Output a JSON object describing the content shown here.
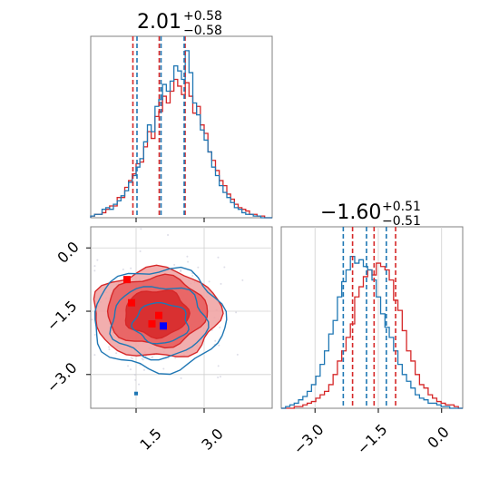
{
  "colors": {
    "red": "#d62728",
    "blue": "#1f77b4",
    "red_fill": "#f0a0a0",
    "blue_marker": "#0000ff",
    "red_marker": "#ff0000"
  },
  "chart_data": {
    "type": "corner",
    "param1": {
      "title_value": "2.01",
      "title_plus": "+0.58",
      "title_minus": "−0.58",
      "xlim": [
        0.5,
        4.5
      ],
      "ticks": [
        1.5,
        3.0
      ],
      "tick_labels": [
        "1.5",
        "3.0"
      ],
      "quantiles_red": [
        1.43,
        2.01,
        2.58
      ],
      "quantiles_blue": [
        1.52,
        2.05,
        2.56
      ]
    },
    "param2": {
      "title_value": "−1.60",
      "title_plus": "+0.51",
      "title_minus": "−0.51",
      "xlim": [
        -3.8,
        0.5
      ],
      "ticks": [
        -3.0,
        -1.5,
        0.0
      ],
      "tick_labels": [
        "−3.0",
        "−1.5",
        "0.0"
      ],
      "quantiles_red": [
        -2.11,
        -1.6,
        -1.09
      ],
      "quantiles_blue": [
        -2.33,
        -1.78,
        -1.31
      ]
    },
    "joint": {
      "xlim": [
        0.5,
        4.5
      ],
      "ylim": [
        -3.8,
        0.5
      ],
      "xticks": [
        1.5,
        3.0
      ],
      "yticks": [
        0.0,
        -1.5,
        -3.0
      ],
      "xtick_labels": [
        "1.5",
        "3.0"
      ],
      "ytick_labels": [
        "0.0",
        "−1.5",
        "−3.0"
      ],
      "red_markers": [
        [
          1.3,
          -0.75
        ],
        [
          1.4,
          -1.3
        ],
        [
          2.0,
          -1.6
        ],
        [
          1.85,
          -1.8
        ]
      ],
      "blue_markers": [
        [
          2.1,
          -1.85
        ],
        [
          1.5,
          -3.45
        ]
      ]
    },
    "hist1_red": [
      0.01,
      0.02,
      0.02,
      0.03,
      0.05,
      0.07,
      0.07,
      0.12,
      0.12,
      0.18,
      0.22,
      0.26,
      0.32,
      0.33,
      0.42,
      0.51,
      0.47,
      0.6,
      0.63,
      0.72,
      0.68,
      0.75,
      0.82,
      0.78,
      0.73,
      0.8,
      0.72,
      0.62,
      0.66,
      0.55,
      0.5,
      0.39,
      0.34,
      0.28,
      0.22,
      0.19,
      0.14,
      0.11,
      0.08,
      0.06,
      0.05,
      0.04,
      0.02,
      0.02,
      0.01,
      0.01,
      0.0,
      0.0
    ],
    "hist1_blue": [
      0.01,
      0.02,
      0.02,
      0.05,
      0.06,
      0.05,
      0.08,
      0.1,
      0.13,
      0.16,
      0.21,
      0.25,
      0.3,
      0.35,
      0.45,
      0.55,
      0.51,
      0.66,
      0.7,
      0.79,
      0.75,
      0.81,
      0.9,
      0.87,
      0.82,
      0.99,
      0.86,
      0.68,
      0.61,
      0.52,
      0.46,
      0.39,
      0.3,
      0.25,
      0.19,
      0.15,
      0.12,
      0.09,
      0.06,
      0.05,
      0.03,
      0.02,
      0.02,
      0.01,
      0.01,
      0.0,
      0.0,
      0.0
    ],
    "hist2_red": [
      0.0,
      0.0,
      0.0,
      0.01,
      0.01,
      0.02,
      0.03,
      0.04,
      0.06,
      0.08,
      0.1,
      0.14,
      0.2,
      0.28,
      0.34,
      0.42,
      0.5,
      0.66,
      0.72,
      0.78,
      0.82,
      0.79,
      0.86,
      0.84,
      0.82,
      0.76,
      0.64,
      0.58,
      0.46,
      0.34,
      0.28,
      0.2,
      0.14,
      0.12,
      0.08,
      0.06,
      0.04,
      0.03,
      0.02,
      0.02,
      0.01,
      0.0
    ],
    "hist2_blue": [
      0.0,
      0.01,
      0.02,
      0.03,
      0.05,
      0.07,
      0.1,
      0.14,
      0.19,
      0.26,
      0.34,
      0.44,
      0.52,
      0.66,
      0.75,
      0.82,
      0.9,
      0.86,
      0.88,
      0.84,
      0.82,
      0.76,
      0.66,
      0.56,
      0.48,
      0.42,
      0.34,
      0.26,
      0.2,
      0.16,
      0.12,
      0.08,
      0.06,
      0.05,
      0.03,
      0.03,
      0.02,
      0.01,
      0.01,
      0.0,
      0.0,
      0.0
    ],
    "contour_red": [
      {
        "level": "outer",
        "center": [
          1.95,
          -1.55
        ],
        "rx": 1.4,
        "ry": 1.05
      },
      {
        "level": "middle",
        "center": [
          1.95,
          -1.5
        ],
        "rx": 1.1,
        "ry": 0.82
      },
      {
        "level": "inner",
        "center": [
          1.95,
          -1.55
        ],
        "rx": 0.7,
        "ry": 0.55
      }
    ],
    "contour_blue": [
      {
        "level": "outer",
        "center": [
          2.0,
          -1.7
        ],
        "rx": 1.45,
        "ry": 1.2
      },
      {
        "level": "middle",
        "center": [
          2.0,
          -1.75
        ],
        "rx": 1.05,
        "ry": 0.85
      },
      {
        "level": "inner",
        "center": [
          2.05,
          -1.78
        ],
        "rx": 0.6,
        "ry": 0.48
      }
    ]
  }
}
